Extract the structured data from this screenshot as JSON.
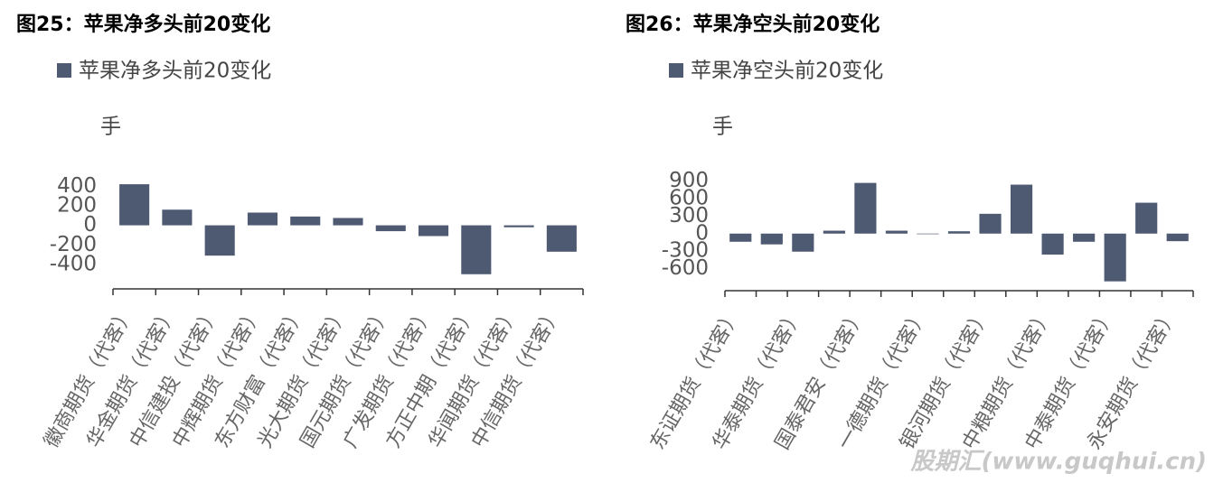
{
  "chart_data": [
    {
      "type": "bar",
      "title": "图25：苹果净多头前20变化",
      "y_label": "手",
      "categories": [
        "徽商期货（代客）",
        "华金期货（代客）",
        "中信建投（代客）",
        "中辉期货（代客）",
        "东方财富（代客）",
        "光大期货（代客）",
        "国元期货（代客）",
        "广发期货（代客）",
        "方正中期（代客）",
        "华闻期货（代客）",
        "中信期货（代客）"
      ],
      "series": [
        {
          "name": "苹果净多头前20变化",
          "color": "#4e5a72",
          "values": [
            420,
            160,
            -310,
            130,
            90,
            75,
            -60,
            -110,
            -500,
            -20,
            -270
          ]
        }
      ],
      "ylim": [
        -650,
        550
      ],
      "yticks": [
        400,
        200,
        0,
        -200,
        -400
      ],
      "legend": "top-left"
    },
    {
      "type": "bar",
      "title": "图26：苹果净空头前20变化",
      "y_label": "手",
      "categories": [
        "东证期货（代客）",
        null,
        "华泰期货（代客）",
        null,
        "国泰君安（代客）",
        null,
        "一德期货（代客）",
        null,
        "银河期货（代客）",
        null,
        "中粮期货（代客）",
        null,
        "中泰期货（代客）",
        null,
        "永安期货（代客）"
      ],
      "series": [
        {
          "name": "苹果净空头前20变化",
          "color": "#4e5a72",
          "values": [
            -140,
            -185,
            -310,
            50,
            870,
            50,
            -10,
            40,
            340,
            840,
            -360,
            -140,
            -820,
            530,
            -130
          ]
        }
      ],
      "ylim": [
        -980,
        1050
      ],
      "yticks": [
        900,
        600,
        300,
        0,
        -300,
        -600
      ],
      "legend": "top-left"
    }
  ],
  "watermark": "股期汇(www.guqhui.cn)"
}
